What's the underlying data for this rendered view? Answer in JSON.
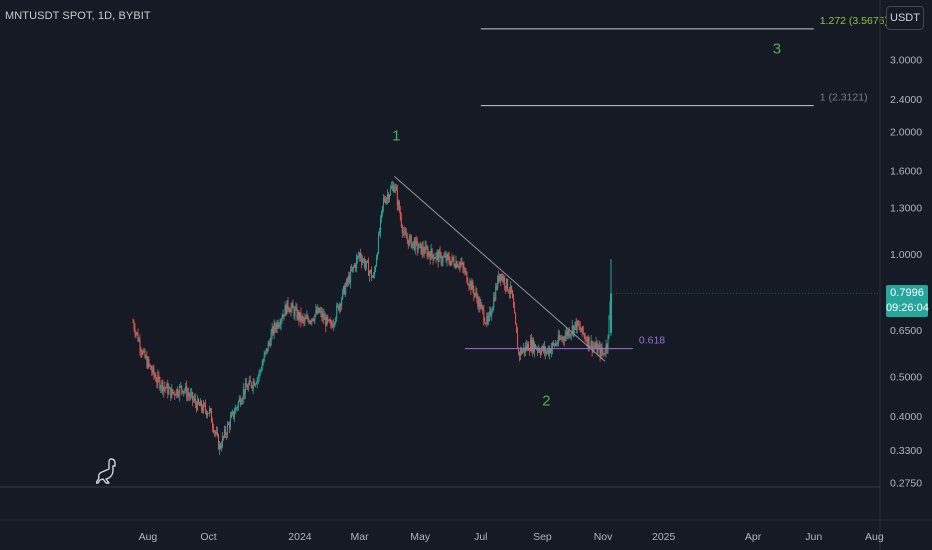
{
  "header": {
    "symbol_title": "MNTUSDT SPOT, 1D, BYBIT",
    "currency_button": "USDT"
  },
  "last_price": {
    "value": "0.7996",
    "countdown": "09:26:04"
  },
  "colors": {
    "background": "#161a25",
    "up": "#26a69a",
    "down": "#ef5350",
    "wave_label": "#4caf50",
    "fib_1272": "#8bc34a",
    "fib_1": "#787b86",
    "fib_0618": "#9c6fd6",
    "trendline": "#9598a1",
    "axis_text": "#b2b5be"
  },
  "icons": {
    "logo": "dino-logo-icon"
  },
  "chart_data": {
    "type": "candlestick",
    "yscale": "log",
    "ylim": [
      0.2678,
      4.2
    ],
    "y_ticks": [
      "3.0000",
      "2.4000",
      "2.0000",
      "1.6000",
      "1.3000",
      "1.0000",
      "0.6500",
      "0.5000",
      "0.4000",
      "0.3300",
      "0.2750"
    ],
    "y_tick_values": [
      3.0,
      2.4,
      2.0,
      1.6,
      1.3,
      1.0,
      0.65,
      0.5,
      0.4,
      0.33,
      0.275
    ],
    "x_ticks": [
      "Aug",
      "Oct",
      "2024",
      "Mar",
      "May",
      "Jul",
      "Sep",
      "Nov",
      "2025",
      "Apr",
      "Jun",
      "Aug"
    ],
    "x_tick_dates": [
      "2023-08-01",
      "2023-10-01",
      "2024-01-01",
      "2024-03-01",
      "2024-05-01",
      "2024-07-01",
      "2024-09-01",
      "2024-11-01",
      "2025-01-01",
      "2025-04-01",
      "2025-06-01",
      "2025-08-01"
    ],
    "x_range": [
      "2023-07-17",
      "2025-08-31"
    ],
    "price_path": [
      {
        "date": "2023-07-17",
        "price": 0.68
      },
      {
        "date": "2023-07-28",
        "price": 0.56
      },
      {
        "date": "2023-08-10",
        "price": 0.49
      },
      {
        "date": "2023-08-25",
        "price": 0.455
      },
      {
        "date": "2023-09-05",
        "price": 0.47
      },
      {
        "date": "2023-09-20",
        "price": 0.425
      },
      {
        "date": "2023-10-02",
        "price": 0.41
      },
      {
        "date": "2023-10-12",
        "price": 0.335
      },
      {
        "date": "2023-10-20",
        "price": 0.375
      },
      {
        "date": "2023-11-05",
        "price": 0.46
      },
      {
        "date": "2023-11-20",
        "price": 0.5
      },
      {
        "date": "2023-12-05",
        "price": 0.65
      },
      {
        "date": "2023-12-20",
        "price": 0.75
      },
      {
        "date": "2024-01-05",
        "price": 0.68
      },
      {
        "date": "2024-01-20",
        "price": 0.72
      },
      {
        "date": "2024-02-01",
        "price": 0.66
      },
      {
        "date": "2024-02-15",
        "price": 0.82
      },
      {
        "date": "2024-03-01",
        "price": 1.0
      },
      {
        "date": "2024-03-15",
        "price": 0.87
      },
      {
        "date": "2024-03-25",
        "price": 1.35
      },
      {
        "date": "2024-04-05",
        "price": 1.48
      },
      {
        "date": "2024-04-15",
        "price": 1.1
      },
      {
        "date": "2024-05-01",
        "price": 1.03
      },
      {
        "date": "2024-05-20",
        "price": 0.98
      },
      {
        "date": "2024-06-10",
        "price": 0.95
      },
      {
        "date": "2024-06-25",
        "price": 0.8
      },
      {
        "date": "2024-07-08",
        "price": 0.67
      },
      {
        "date": "2024-07-20",
        "price": 0.9
      },
      {
        "date": "2024-08-01",
        "price": 0.8
      },
      {
        "date": "2024-08-08",
        "price": 0.57
      },
      {
        "date": "2024-08-20",
        "price": 0.6
      },
      {
        "date": "2024-09-05",
        "price": 0.575
      },
      {
        "date": "2024-09-20",
        "price": 0.62
      },
      {
        "date": "2024-10-05",
        "price": 0.67
      },
      {
        "date": "2024-10-20",
        "price": 0.6
      },
      {
        "date": "2024-11-01",
        "price": 0.57
      },
      {
        "date": "2024-11-05",
        "price": 0.6
      },
      {
        "date": "2024-11-09",
        "price": 0.7996
      }
    ],
    "last_candle": {
      "date": "2024-11-09",
      "open": 0.64,
      "high": 0.97,
      "low": 0.63,
      "close": 0.7996
    },
    "wave_labels": [
      {
        "text": "1",
        "date": "2024-04-07",
        "price": 1.9
      },
      {
        "text": "2",
        "date": "2024-09-05",
        "price": 0.425
      },
      {
        "text": "3",
        "date": "2025-04-25",
        "price": 3.1
      }
    ],
    "fib_levels": [
      {
        "label": "1.272 (3.5676)",
        "price": 3.5676,
        "from": "2024-07-01",
        "to": "2025-06-01"
      },
      {
        "label": "1 (2.3121)",
        "price": 2.3121,
        "from": "2024-07-01",
        "to": "2025-06-01"
      },
      {
        "label": "0.618",
        "price": 0.5856,
        "from": "2024-06-15",
        "to": "2024-12-01"
      }
    ],
    "trendline": {
      "from_date": "2024-04-05",
      "from_price": 1.55,
      "to_date": "2024-11-03",
      "to_price": 0.545
    }
  }
}
